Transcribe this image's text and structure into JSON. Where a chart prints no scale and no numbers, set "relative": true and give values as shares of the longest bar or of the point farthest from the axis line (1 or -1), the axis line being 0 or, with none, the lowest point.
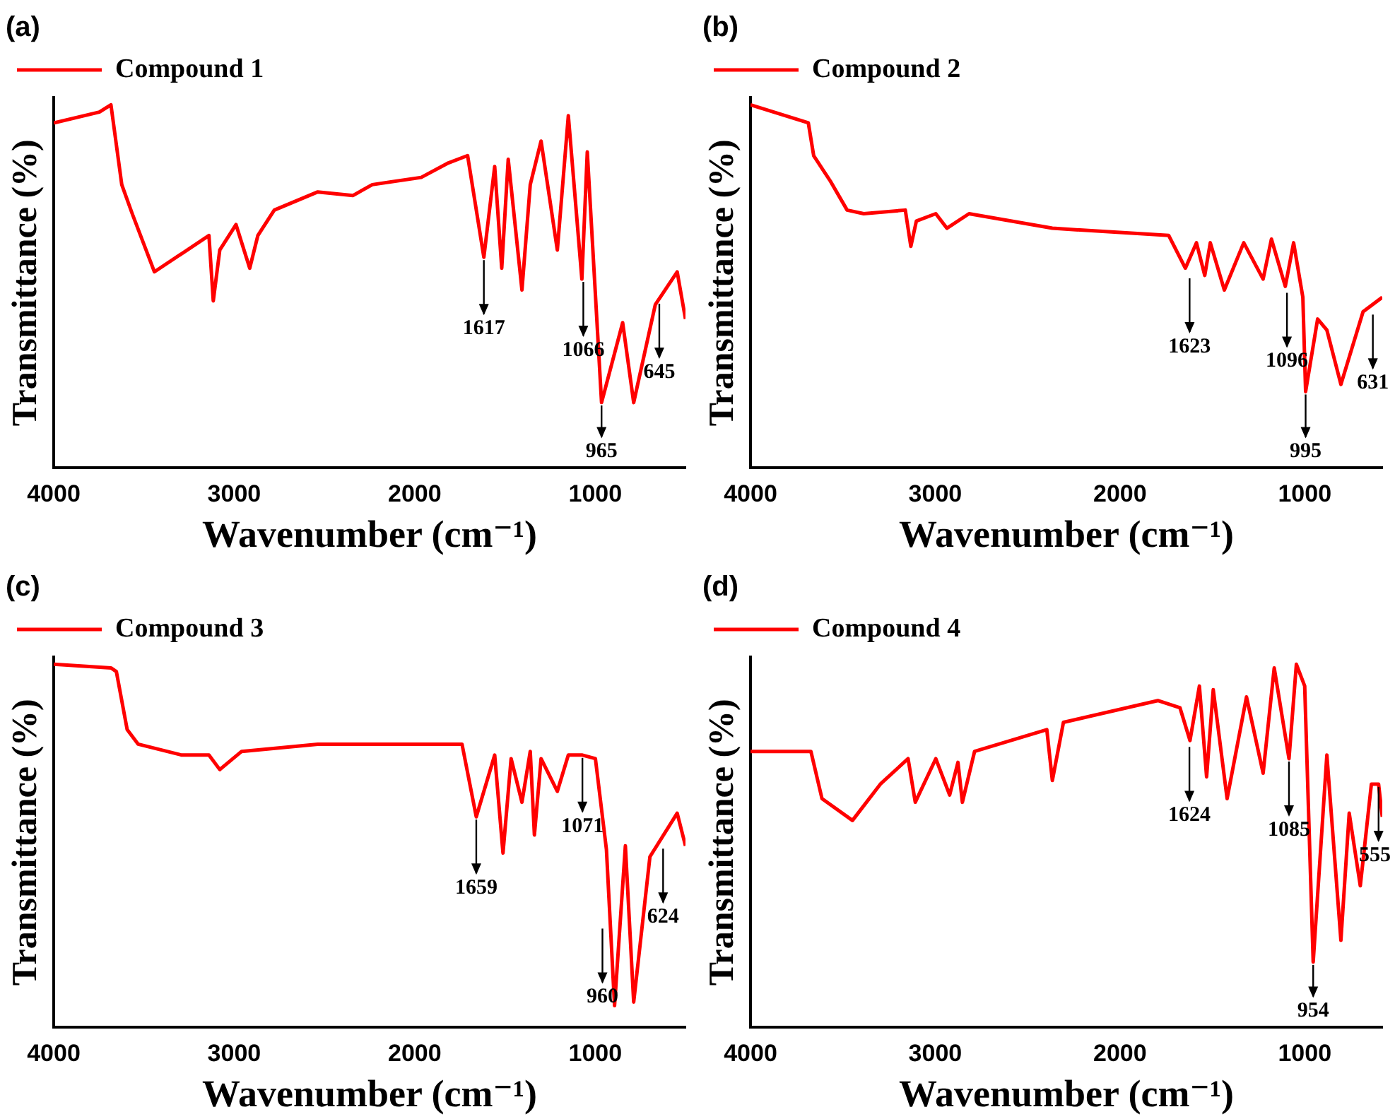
{
  "chart_data": [
    {
      "type": "line",
      "title": "(a)",
      "xlabel": "Wavenumber (cm⁻¹)",
      "ylabel": "Transmittance (%)",
      "relative": true,
      "legend": "top left",
      "grid": false,
      "marker": "none",
      "xlim": [
        4000,
        500
      ],
      "xticks": [
        4000,
        3000,
        2000,
        1000
      ],
      "x": [
        4000,
        3747,
        3683,
        3623,
        3565,
        3442,
        3140,
        3116,
        3080,
        2990,
        2914,
        2869,
        2778,
        2537,
        2343,
        2235,
        1964,
        1813,
        1707,
        1617,
        1557,
        1518,
        1482,
        1406,
        1360,
        1300,
        1210,
        1149,
        1074,
        1044,
        965,
        848,
        787,
        667,
        546,
        500
      ],
      "series": [
        {
          "name": "Compound 1",
          "color": "#ff0000",
          "values": [
            0.95,
            0.98,
            1.0,
            0.78,
            0.7,
            0.54,
            0.64,
            0.46,
            0.6,
            0.67,
            0.55,
            0.64,
            0.71,
            0.76,
            0.75,
            0.78,
            0.8,
            0.84,
            0.86,
            0.58,
            0.83,
            0.55,
            0.85,
            0.49,
            0.78,
            0.9,
            0.6,
            0.97,
            0.52,
            0.87,
            0.18,
            0.4,
            0.18,
            0.45,
            0.54,
            0.41
          ]
        }
      ],
      "annotations": [
        {
          "text": "1617",
          "x": 1617,
          "y": 0.58
        },
        {
          "text": "1066",
          "x": 1066,
          "y": 0.52
        },
        {
          "text": "965",
          "x": 965,
          "y": 0.18
        },
        {
          "text": "645",
          "x": 645,
          "y": 0.46
        }
      ]
    },
    {
      "type": "line",
      "title": "(b)",
      "xlabel": "Wavenumber (cm⁻¹)",
      "ylabel": "Transmittance (%)",
      "relative": true,
      "legend": "top left",
      "grid": false,
      "marker": "none",
      "xlim": [
        4000,
        580
      ],
      "xticks": [
        4000,
        3000,
        2000,
        1000
      ],
      "x": [
        4000,
        3687,
        3658,
        3568,
        3477,
        3387,
        3162,
        3132,
        3102,
        2997,
        2937,
        2817,
        2366,
        1736,
        1646,
        1586,
        1541,
        1511,
        1435,
        1330,
        1225,
        1180,
        1105,
        1060,
        1010,
        995,
        930,
        880,
        804,
        684,
        580
      ],
      "series": [
        {
          "name": "Compound 2",
          "color": "#ff0000",
          "values": [
            1.0,
            0.95,
            0.86,
            0.79,
            0.71,
            0.7,
            0.71,
            0.61,
            0.68,
            0.7,
            0.66,
            0.7,
            0.66,
            0.64,
            0.55,
            0.62,
            0.53,
            0.62,
            0.49,
            0.62,
            0.52,
            0.63,
            0.5,
            0.62,
            0.47,
            0.21,
            0.41,
            0.38,
            0.23,
            0.43,
            0.47
          ]
        }
      ],
      "annotations": [
        {
          "text": "1623",
          "x": 1623,
          "y": 0.53
        },
        {
          "text": "1096",
          "x": 1096,
          "y": 0.49
        },
        {
          "text": "995",
          "x": 995,
          "y": 0.21
        },
        {
          "text": "631",
          "x": 631,
          "y": 0.43
        }
      ]
    },
    {
      "type": "line",
      "title": "(c)",
      "xlabel": "Wavenumber (cm⁻¹)",
      "ylabel": "Transmittance (%)",
      "relative": true,
      "legend": "top left",
      "grid": false,
      "marker": "none",
      "xlim": [
        4000,
        500
      ],
      "xticks": [
        4000,
        3000,
        2000,
        1000
      ],
      "x": [
        4000,
        3683,
        3653,
        3593,
        3532,
        3291,
        3140,
        3080,
        2959,
        2537,
        1738,
        1659,
        1557,
        1511,
        1466,
        1406,
        1360,
        1337,
        1300,
        1210,
        1149,
        1071,
        999,
        938,
        893,
        833,
        787,
        697,
        546,
        500
      ],
      "series": [
        {
          "name": "Compound 3",
          "color": "#ff0000",
          "values": [
            1.0,
            0.99,
            0.98,
            0.82,
            0.78,
            0.75,
            0.75,
            0.71,
            0.76,
            0.78,
            0.78,
            0.58,
            0.75,
            0.48,
            0.74,
            0.62,
            0.76,
            0.53,
            0.74,
            0.65,
            0.75,
            0.75,
            0.74,
            0.49,
            0.06,
            0.5,
            0.07,
            0.47,
            0.59,
            0.5
          ]
        }
      ],
      "annotations": [
        {
          "text": "1659",
          "x": 1659,
          "y": 0.58
        },
        {
          "text": "1071",
          "x": 1071,
          "y": 0.75
        },
        {
          "text": "960",
          "x": 960,
          "y": 0.28
        },
        {
          "text": "624",
          "x": 624,
          "y": 0.5
        }
      ]
    },
    {
      "type": "line",
      "title": "(d)",
      "xlabel": "Wavenumber (cm⁻¹)",
      "ylabel": "Transmittance (%)",
      "relative": true,
      "legend": "top left",
      "grid": false,
      "marker": "none",
      "xlim": [
        4000,
        580
      ],
      "xticks": [
        4000,
        3000,
        2000,
        1000
      ],
      "x": [
        4000,
        3673,
        3613,
        3448,
        3297,
        3147,
        3108,
        2997,
        2922,
        2877,
        2853,
        2787,
        2396,
        2366,
        2306,
        1795,
        1675,
        1621,
        1570,
        1531,
        1495,
        1420,
        1315,
        1225,
        1165,
        1085,
        1045,
        1000,
        954,
        880,
        804,
        759,
        699,
        639,
        600,
        580
      ],
      "series": [
        {
          "name": "Compound 4",
          "color": "#ff0000",
          "values": [
            0.76,
            0.76,
            0.63,
            0.57,
            0.67,
            0.74,
            0.62,
            0.74,
            0.64,
            0.73,
            0.62,
            0.76,
            0.82,
            0.68,
            0.84,
            0.9,
            0.88,
            0.79,
            0.94,
            0.69,
            0.93,
            0.63,
            0.91,
            0.7,
            0.99,
            0.74,
            1.0,
            0.94,
            0.18,
            0.75,
            0.24,
            0.59,
            0.39,
            0.67,
            0.67,
            0.58
          ]
        }
      ],
      "annotations": [
        {
          "text": "1624",
          "x": 1624,
          "y": 0.78
        },
        {
          "text": "1085",
          "x": 1085,
          "y": 0.74
        },
        {
          "text": "954",
          "x": 954,
          "y": 0.18
        },
        {
          "text": "555",
          "x": 600,
          "y": 0.67
        }
      ]
    }
  ]
}
